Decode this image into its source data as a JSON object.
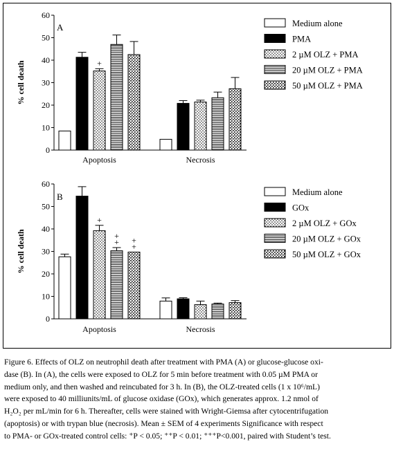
{
  "chart_data": [
    {
      "type": "bar",
      "panel_label": "A",
      "ylabel": "% cell death",
      "xlabel": "",
      "ylim": [
        0,
        60
      ],
      "yticks": [
        "0",
        "10",
        "20",
        "30",
        "40",
        "50",
        "60"
      ],
      "categories": [
        "Apoptosis",
        "Necrosis"
      ],
      "legend_position": "right",
      "series": [
        {
          "name": "Medium alone",
          "pattern": "empty",
          "values": [
            8.5,
            4.8
          ],
          "errors": [
            0,
            0
          ],
          "annotations": [
            "",
            ""
          ]
        },
        {
          "name": "PMA",
          "pattern": "solid",
          "values": [
            41.3,
            20.8
          ],
          "errors": [
            2.2,
            1.2
          ],
          "annotations": [
            "",
            ""
          ]
        },
        {
          "name": "2 µM  OLZ + PMA",
          "pattern": "dots",
          "values": [
            35.2,
            21.4
          ],
          "errors": [
            1.0,
            0.8
          ],
          "annotations": [
            "+",
            ""
          ]
        },
        {
          "name": "20 µM  OLZ + PMA",
          "pattern": "hlines",
          "values": [
            47.0,
            23.3
          ],
          "errors": [
            4.2,
            2.5
          ],
          "annotations": [
            "",
            ""
          ]
        },
        {
          "name": "50 µM  OLZ + PMA",
          "pattern": "checker",
          "values": [
            42.5,
            27.3
          ],
          "errors": [
            5.8,
            5.0
          ],
          "annotations": [
            "",
            ""
          ]
        }
      ]
    },
    {
      "type": "bar",
      "panel_label": "B",
      "ylabel": "% cell death",
      "xlabel": "",
      "ylim": [
        0,
        60
      ],
      "yticks": [
        "0",
        "10",
        "20",
        "30",
        "40",
        "50",
        "60"
      ],
      "categories": [
        "Apoptosis",
        "Necrosis"
      ],
      "legend_position": "right",
      "series": [
        {
          "name": "Medium alone",
          "pattern": "empty",
          "values": [
            27.6,
            7.9
          ],
          "errors": [
            1.2,
            1.4
          ],
          "annotations": [
            "",
            ""
          ]
        },
        {
          "name": "GOx",
          "pattern": "solid",
          "values": [
            54.6,
            8.9
          ],
          "errors": [
            4.2,
            0.5
          ],
          "annotations": [
            "",
            ""
          ]
        },
        {
          "name": "2  µM  OLZ + GOx",
          "pattern": "dots",
          "values": [
            39.2,
            6.3
          ],
          "errors": [
            2.4,
            1.6
          ],
          "annotations": [
            "+",
            ""
          ]
        },
        {
          "name": "20  µM   OLZ + GOx",
          "pattern": "hlines",
          "values": [
            30.3,
            6.6
          ],
          "errors": [
            1.4,
            0.4
          ],
          "annotations": [
            "++",
            ""
          ]
        },
        {
          "name": "50  µM  OLZ + GOx",
          "pattern": "checker",
          "values": [
            29.7,
            7.2
          ],
          "errors": [
            0,
            0.9
          ],
          "annotations": [
            "++",
            ""
          ]
        }
      ]
    }
  ],
  "caption": {
    "lines": [
      "Figure 6. Effects of OLZ on neutrophil death after treatment with PMA (A) or glucose-glucose oxi-",
      "dase (B). In (A), the cells were exposed to OLZ for 5 min before treatment with 0.05 µM PMA or",
      "medium only, and then washed and reincubated for 3 h. In (B), the OLZ-treated cells (1 x 10⁶/mL)",
      "were exposed to 40 milliunits/mL of glucose oxidase (GOx), which generates approx. 1.2 nmol of",
      "H₂O₂ per mL/min for 6 h. Thereafter, cells were stained with Wright-Giemsa after cytocentrifugation",
      "(apoptosis) or with trypan blue (necrosis). Mean ± SEM of 4 experiments Significance with respect",
      "to PMA- or GOx-treated control cells: ⁺P < 0.05; ⁺⁺P < 0.01; ⁺⁺⁺P<0.001, paired with Student’s test."
    ]
  },
  "colors": {
    "ink": "#000000",
    "background": "#ffffff"
  }
}
